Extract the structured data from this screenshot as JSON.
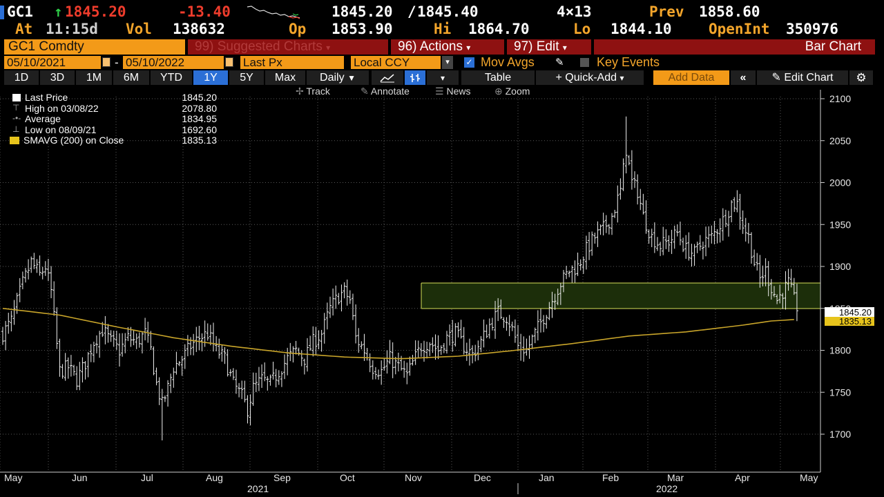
{
  "header": {
    "row1": {
      "ticker": "GC1",
      "arrow": "↑",
      "last": "1845.20",
      "change": "-13.40",
      "bid": "1845.20",
      "ask": "1845.40",
      "size": "4×13",
      "prev_label": "Prev",
      "prev": "1858.60"
    },
    "row2": {
      "at_label": "At",
      "time": "11:15d",
      "vol_label": "Vol",
      "vol": "138632",
      "op_label": "Op",
      "op": "1853.90",
      "hi_label": "Hi",
      "hi": "1864.70",
      "lo_label": "Lo",
      "lo": "1844.10",
      "openint_label": "OpenInt",
      "openint": "350976"
    }
  },
  "toolbar": {
    "security": "GC1 Comdty",
    "suggested": "99) Suggested Charts",
    "actions": "96) Actions",
    "edit": "97) Edit",
    "chart_type": "Bar Chart"
  },
  "range": {
    "start": "05/10/2021",
    "sep": "-",
    "end": "05/10/2022",
    "field": "Last Px",
    "currency": "Local CCY",
    "mov_avgs": "Mov Avgs",
    "key_events": "Key Events"
  },
  "periods": {
    "buttons": [
      "1D",
      "3D",
      "1M",
      "6M",
      "YTD",
      "1Y",
      "5Y",
      "Max"
    ],
    "active": "1Y",
    "frequency": "Daily",
    "table": "Table",
    "quick_add": "+ Quick-Add",
    "add_data": "Add Data",
    "edit_chart": "Edit Chart"
  },
  "tools": {
    "track": "Track",
    "annotate": "Annotate",
    "news": "News",
    "zoom": "Zoom"
  },
  "legend": [
    {
      "label": "Last Price",
      "value": "1845.20"
    },
    {
      "label": "High on 03/08/22",
      "value": "2078.80"
    },
    {
      "label": "Average",
      "value": "1834.95"
    },
    {
      "label": "Low on 08/09/21",
      "value": "1692.60"
    },
    {
      "label": "SMAVG (200)  on Close",
      "value": "1835.13"
    }
  ],
  "price_labels": {
    "last": "1845.20",
    "sma": "1835.13"
  },
  "colors": {
    "orange": "#f39a18",
    "red_bar": "#8e1111",
    "sma": "#c9a52a",
    "zone": "#1c2e0a",
    "zone_border": "#d9e25a",
    "active_blue": "#2b6fd6"
  },
  "chart_data": {
    "type": "bar",
    "ylim": [
      1650,
      2110
    ],
    "yticks": [
      "1700",
      "1750",
      "1800",
      "1850",
      "1900",
      "1950",
      "2000",
      "2050",
      "2100"
    ],
    "xlabels": [
      "May",
      "Jun",
      "Jul",
      "Aug",
      "Sep",
      "Oct",
      "Nov",
      "Dec",
      "Jan",
      "Feb",
      "Mar",
      "Apr",
      "May"
    ],
    "year_labels": [
      "2021",
      "2022"
    ],
    "zone": [
      1850,
      1880
    ],
    "price_path": [
      [
        0,
        1820
      ],
      [
        6,
        1835
      ],
      [
        14,
        1880
      ],
      [
        20,
        1905
      ],
      [
        26,
        1890
      ],
      [
        30,
        1900
      ],
      [
        34,
        1870
      ],
      [
        40,
        1775
      ],
      [
        46,
        1780
      ],
      [
        52,
        1765
      ],
      [
        58,
        1785
      ],
      [
        64,
        1810
      ],
      [
        70,
        1825
      ],
      [
        76,
        1810
      ],
      [
        82,
        1800
      ],
      [
        88,
        1815
      ],
      [
        94,
        1810
      ],
      [
        100,
        1820
      ],
      [
        104,
        1800
      ],
      [
        108,
        1760
      ],
      [
        112,
        1735
      ],
      [
        116,
        1755
      ],
      [
        120,
        1780
      ],
      [
        126,
        1790
      ],
      [
        132,
        1805
      ],
      [
        138,
        1815
      ],
      [
        144,
        1820
      ],
      [
        150,
        1800
      ],
      [
        156,
        1790
      ],
      [
        162,
        1760
      ],
      [
        168,
        1745
      ],
      [
        172,
        1730
      ],
      [
        176,
        1755
      ],
      [
        182,
        1765
      ],
      [
        188,
        1760
      ],
      [
        194,
        1775
      ],
      [
        200,
        1790
      ],
      [
        206,
        1800
      ],
      [
        212,
        1790
      ],
      [
        218,
        1810
      ],
      [
        224,
        1820
      ],
      [
        230,
        1850
      ],
      [
        236,
        1865
      ],
      [
        240,
        1870
      ],
      [
        244,
        1860
      ],
      [
        248,
        1815
      ],
      [
        254,
        1800
      ],
      [
        260,
        1780
      ],
      [
        266,
        1775
      ],
      [
        272,
        1790
      ],
      [
        278,
        1780
      ],
      [
        284,
        1770
      ],
      [
        288,
        1785
      ],
      [
        294,
        1805
      ],
      [
        300,
        1810
      ],
      [
        306,
        1800
      ],
      [
        312,
        1815
      ],
      [
        318,
        1820
      ],
      [
        324,
        1805
      ],
      [
        330,
        1795
      ],
      [
        336,
        1810
      ],
      [
        342,
        1830
      ],
      [
        348,
        1845
      ],
      [
        354,
        1840
      ],
      [
        358,
        1825
      ],
      [
        362,
        1805
      ],
      [
        368,
        1800
      ],
      [
        374,
        1820
      ],
      [
        380,
        1840
      ],
      [
        386,
        1860
      ],
      [
        392,
        1880
      ],
      [
        398,
        1895
      ],
      [
        404,
        1900
      ],
      [
        410,
        1920
      ],
      [
        416,
        1935
      ],
      [
        422,
        1945
      ],
      [
        428,
        1960
      ],
      [
        434,
        1990
      ],
      [
        438,
        2040
      ],
      [
        442,
        2000
      ],
      [
        446,
        1990
      ],
      [
        450,
        1960
      ],
      [
        456,
        1935
      ],
      [
        462,
        1925
      ],
      [
        468,
        1930
      ],
      [
        474,
        1940
      ],
      [
        480,
        1920
      ],
      [
        486,
        1915
      ],
      [
        492,
        1930
      ],
      [
        498,
        1935
      ],
      [
        504,
        1950
      ],
      [
        508,
        1960
      ],
      [
        512,
        1975
      ],
      [
        516,
        1975
      ],
      [
        520,
        1950
      ],
      [
        524,
        1935
      ],
      [
        528,
        1905
      ],
      [
        532,
        1885
      ],
      [
        536,
        1895
      ],
      [
        540,
        1875
      ],
      [
        544,
        1860
      ],
      [
        548,
        1870
      ],
      [
        552,
        1880
      ],
      [
        556,
        1860
      ],
      [
        559,
        1848
      ]
    ],
    "sma_path": [
      [
        0,
        1850
      ],
      [
        40,
        1842
      ],
      [
        80,
        1828
      ],
      [
        120,
        1815
      ],
      [
        160,
        1805
      ],
      [
        200,
        1797
      ],
      [
        240,
        1792
      ],
      [
        280,
        1790
      ],
      [
        320,
        1793
      ],
      [
        360,
        1800
      ],
      [
        400,
        1808
      ],
      [
        440,
        1817
      ],
      [
        480,
        1822
      ],
      [
        520,
        1830
      ],
      [
        540,
        1835
      ],
      [
        559,
        1837
      ]
    ]
  }
}
